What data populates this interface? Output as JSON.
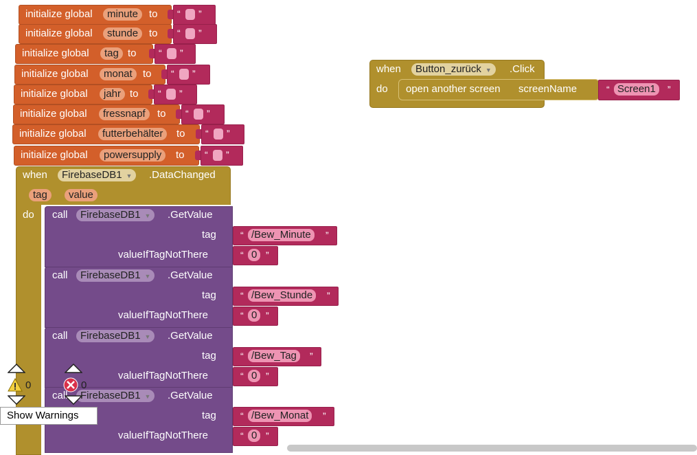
{
  "globals": [
    {
      "keyword": "initialize global",
      "name": "minute",
      "to": "to"
    },
    {
      "keyword": "initialize global",
      "name": "stunde",
      "to": "to"
    },
    {
      "keyword": "initialize global",
      "name": "tag",
      "to": "to"
    },
    {
      "keyword": "initialize global",
      "name": "monat",
      "to": "to"
    },
    {
      "keyword": "initialize global",
      "name": "jahr",
      "to": "to"
    },
    {
      "keyword": "initialize global",
      "name": "fressnapf",
      "to": "to"
    },
    {
      "keyword": "initialize global",
      "name": "futterbehälter",
      "to": "to"
    },
    {
      "keyword": "initialize global",
      "name": "powersupply",
      "to": "to"
    }
  ],
  "event_firebase": {
    "when": "when",
    "component": "FirebaseDB1",
    "event": ".DataChanged",
    "params": [
      "tag",
      "value"
    ],
    "do": "do",
    "calls": [
      {
        "call": "call",
        "component": "FirebaseDB1",
        "method": ".GetValue",
        "tag_label": "tag",
        "tag_value": "/Bew_Minute",
        "default_label": "valueIfTagNotThere",
        "default_value": "0"
      },
      {
        "call": "call",
        "component": "FirebaseDB1",
        "method": ".GetValue",
        "tag_label": "tag",
        "tag_value": "/Bew_Stunde",
        "default_label": "valueIfTagNotThere",
        "default_value": "0"
      },
      {
        "call": "call",
        "component": "FirebaseDB1",
        "method": ".GetValue",
        "tag_label": "tag",
        "tag_value": "/Bew_Tag",
        "default_label": "valueIfTagNotThere",
        "default_value": "0"
      },
      {
        "call": "call",
        "component": "FirebaseDB1",
        "method": ".GetValue",
        "tag_label": "tag",
        "tag_value": "/Bew_Monat",
        "default_label": "valueIfTagNotThere",
        "default_value": "0"
      }
    ]
  },
  "event_button": {
    "when": "when",
    "component": "Button_zurück",
    "event": ".Click",
    "do": "do",
    "action": "open another screen",
    "param_label": "screenName",
    "screen_value": "Screen1"
  },
  "quote_open": "“",
  "quote_close": "”",
  "warnings": {
    "count": "0",
    "errors": "0",
    "toggle_label": "Show Warnings"
  },
  "colors": {
    "variable": "#d35f2a",
    "text": "#b22a5b",
    "component": "#744b8a",
    "control": "#b0902d"
  }
}
